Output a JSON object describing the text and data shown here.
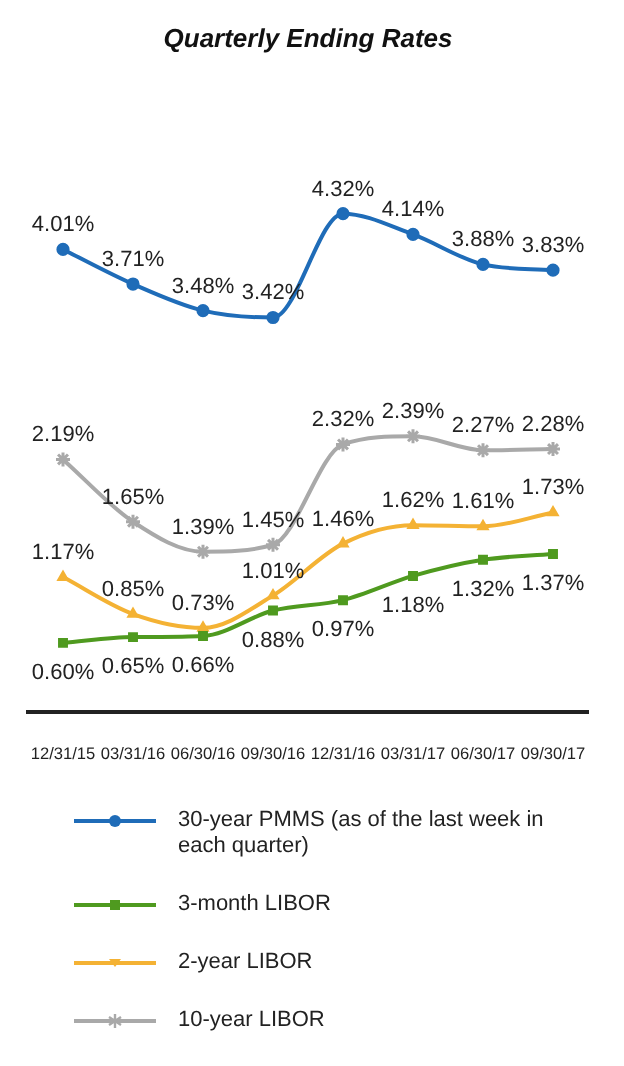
{
  "chart_data": {
    "type": "line",
    "title": "Quarterly Ending Rates",
    "categories": [
      "12/31/15",
      "03/31/16",
      "06/30/16",
      "09/30/16",
      "12/31/16",
      "03/31/17",
      "06/30/17",
      "09/30/17"
    ],
    "series": [
      {
        "name": "30-year PMMS (as of the last week in each quarter)",
        "color": "#1f6cb8",
        "marker": "circle",
        "values": [
          4.01,
          3.71,
          3.48,
          3.42,
          4.32,
          4.14,
          3.88,
          3.83
        ],
        "value_labels": [
          "4.01%",
          "3.71%",
          "3.48%",
          "3.42%",
          "4.32%",
          "4.14%",
          "3.88%",
          "3.83%"
        ]
      },
      {
        "name": "3-month LIBOR",
        "color": "#4f9a1f",
        "marker": "square",
        "values": [
          0.6,
          0.65,
          0.66,
          0.88,
          0.97,
          1.18,
          1.32,
          1.37
        ],
        "value_labels": [
          "0.60%",
          "0.65%",
          "0.66%",
          "0.88%",
          "0.97%",
          "1.18%",
          "1.32%",
          "1.37%"
        ]
      },
      {
        "name": "2-year LIBOR",
        "color": "#f4b234",
        "marker": "triangle",
        "values": [
          1.17,
          0.85,
          0.73,
          1.01,
          1.46,
          1.62,
          1.61,
          1.73
        ],
        "value_labels": [
          "1.17%",
          "0.85%",
          "0.73%",
          "1.01%",
          "1.46%",
          "1.62%",
          "1.61%",
          "1.73%"
        ]
      },
      {
        "name": "10-year LIBOR",
        "color": "#a9a9a9",
        "marker": "cross",
        "values": [
          2.19,
          1.65,
          1.39,
          1.45,
          2.32,
          2.39,
          2.27,
          2.28
        ],
        "value_labels": [
          "2.19%",
          "1.65%",
          "1.39%",
          "1.45%",
          "2.32%",
          "2.39%",
          "2.27%",
          "2.28%"
        ]
      }
    ],
    "legend": "bottom"
  }
}
